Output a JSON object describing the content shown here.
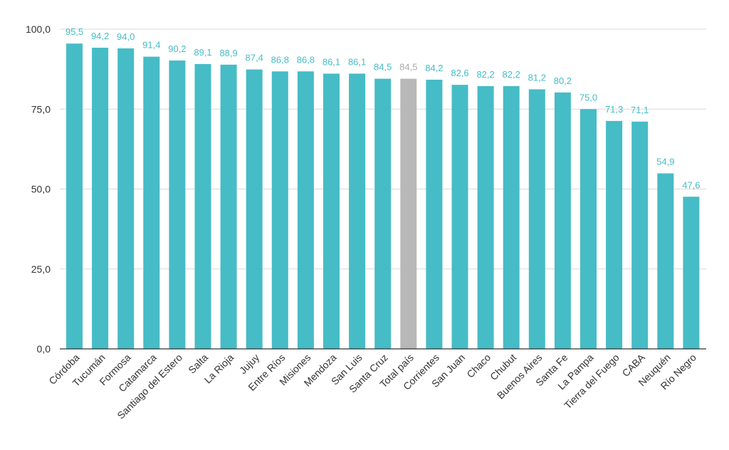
{
  "chart_data": {
    "type": "bar",
    "categories": [
      "Córdoba",
      "Tucumán",
      "Formosa",
      "Catamarca",
      "Santiago del Estero",
      "Salta",
      "La Rioja",
      "Jujuy",
      "Entre Ríos",
      "Misiones",
      "Mendoza",
      "San Luis",
      "Santa Cruz",
      "Total país",
      "Corrientes",
      "San Juan",
      "Chaco",
      "Chubut",
      "Buenos Aires",
      "Santa Fe",
      "La Pampa",
      "Tierra del Fuego",
      "CABA",
      "Neuquén",
      "Río Negro"
    ],
    "values": [
      95.5,
      94.2,
      94.0,
      91.4,
      90.2,
      89.1,
      88.9,
      87.4,
      86.8,
      86.8,
      86.1,
      86.1,
      84.5,
      84.5,
      84.2,
      82.6,
      82.2,
      82.2,
      81.2,
      80.2,
      75.0,
      71.3,
      71.1,
      54.9,
      47.6
    ],
    "value_labels": [
      "95,5",
      "94,2",
      "94,0",
      "91,4",
      "90,2",
      "89,1",
      "88,9",
      "87,4",
      "86,8",
      "86,8",
      "86,1",
      "86,1",
      "84,5",
      "84,5",
      "84,2",
      "82,6",
      "82,2",
      "82,2",
      "81,2",
      "80,2",
      "75,0",
      "71,3",
      "71,1",
      "54,9",
      "47,6"
    ],
    "highlight_category": "Total país",
    "yticks": [
      0,
      25,
      50,
      75,
      100
    ],
    "ytick_labels": [
      "0,0",
      "25,0",
      "50,0",
      "75,0",
      "100,0"
    ],
    "ylim": [
      0,
      100
    ],
    "title": "",
    "xlabel": "",
    "ylabel": "",
    "grid": true,
    "colors": {
      "bar": "#46bcc6",
      "highlight_bar": "#b8b8b8",
      "label": "#46bcc6",
      "highlight_label": "#aaaaaa"
    }
  }
}
